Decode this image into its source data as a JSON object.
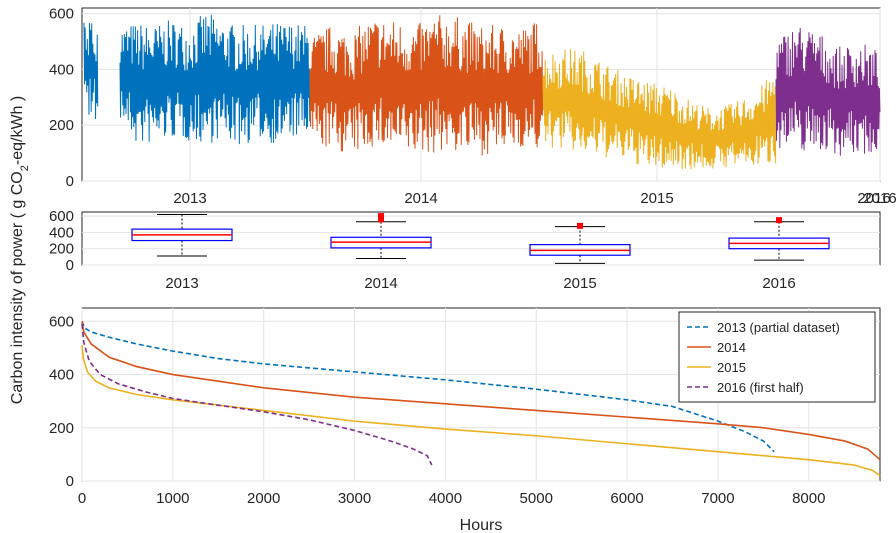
{
  "chart_data": [
    {
      "type": "line",
      "description_role": "hourly time series",
      "ylim": [
        0,
        620
      ],
      "yticks": [
        0,
        200,
        400,
        600
      ],
      "x_tick_labels": [
        "2013",
        "2014",
        "2015",
        "2016"
      ],
      "x_tick_labels_extra": [
        "2016"
      ],
      "colors": {
        "2013": "#0072BD",
        "2014": "#D95319",
        "2015": "#EDB120",
        "2016": "#7E2F8E"
      },
      "series": [
        {
          "name": "2013",
          "level_envelope": {
            "low": [
              220,
              120,
              130,
              150,
              140,
              130,
              150,
              120,
              150,
              130,
              150,
              150
            ],
            "high": [
              560,
              570,
              560,
              580,
              560,
              610,
              570,
              560,
              560,
              570,
              570,
              560
            ]
          }
        },
        {
          "name": "2014",
          "level_envelope": {
            "low": [
              130,
              110,
              90,
              120,
              100,
              90,
              100,
              100,
              90,
              100,
              120,
              100
            ],
            "high": [
              520,
              560,
              540,
              590,
              580,
              560,
              600,
              590,
              560,
              560,
              550,
              590
            ]
          }
        },
        {
          "name": "2015",
          "level_envelope": {
            "low": [
              120,
              110,
              90,
              80,
              70,
              40,
              40,
              40,
              40,
              50,
              50,
              60
            ],
            "high": [
              460,
              480,
              470,
              420,
              380,
              360,
              340,
              290,
              260,
              280,
              320,
              400
            ]
          }
        },
        {
          "name": "2016",
          "level_envelope": {
            "low": [
              120,
              100,
              110,
              90,
              90,
              100
            ],
            "high": [
              510,
              570,
              540,
              480,
              500,
              470
            ]
          }
        }
      ]
    },
    {
      "type": "box",
      "ylim": [
        0,
        650
      ],
      "yticks": [
        0,
        200,
        400,
        600
      ],
      "categories": [
        "2013",
        "2014",
        "2015",
        "2016"
      ],
      "boxes": [
        {
          "category": "2013",
          "whisker_low": 110,
          "q1": 300,
          "median": 370,
          "q3": 440,
          "whisker_high": 620,
          "outliers": []
        },
        {
          "category": "2014",
          "whisker_low": 80,
          "q1": 210,
          "median": 280,
          "q3": 340,
          "whisker_high": 530,
          "outliers": [
            560,
            570,
            580,
            590,
            600
          ]
        },
        {
          "category": "2015",
          "whisker_low": 20,
          "q1": 120,
          "median": 180,
          "q3": 250,
          "whisker_high": 470,
          "outliers": [
            480
          ]
        },
        {
          "category": "2016",
          "whisker_low": 60,
          "q1": 200,
          "median": 265,
          "q3": 330,
          "whisker_high": 530,
          "outliers": [
            550
          ]
        }
      ]
    },
    {
      "type": "line",
      "description_role": "duration curves",
      "xlabel": "Hours",
      "ylabel": "Carbon intensity of power ( g CO₂-eq/kWh )",
      "ylabel_parts": {
        "before": "Carbon intensity of power ( g CO",
        "sub": "2",
        "after": "-eq/kWh )"
      },
      "xlim": [
        0,
        8784
      ],
      "ylim": [
        0,
        650
      ],
      "xticks": [
        0,
        1000,
        2000,
        3000,
        4000,
        5000,
        6000,
        7000,
        8000
      ],
      "yticks": [
        0,
        200,
        400,
        600
      ],
      "grid": true,
      "legend_position": "top-right",
      "series": [
        {
          "name": "2013 (partial dataset)",
          "color": "#0072BD",
          "dash": true,
          "x": [
            0,
            30,
            100,
            300,
            600,
            1000,
            1500,
            2000,
            3000,
            4000,
            5000,
            6000,
            6500,
            7000,
            7300,
            7500,
            7620
          ],
          "y": [
            600,
            575,
            560,
            540,
            515,
            488,
            460,
            440,
            410,
            380,
            345,
            305,
            280,
            225,
            185,
            150,
            110
          ]
        },
        {
          "name": "2014",
          "color": "#D95319",
          "dash": false,
          "x": [
            0,
            20,
            100,
            300,
            600,
            1000,
            1500,
            2000,
            3000,
            4000,
            5000,
            6000,
            7000,
            7500,
            8000,
            8400,
            8650,
            8784
          ],
          "y": [
            600,
            560,
            515,
            465,
            430,
            400,
            375,
            350,
            315,
            290,
            265,
            240,
            215,
            200,
            175,
            150,
            120,
            80
          ]
        },
        {
          "name": "2015",
          "color": "#EDB120",
          "dash": false,
          "x": [
            0,
            15,
            60,
            150,
            300,
            600,
            1000,
            1500,
            2000,
            3000,
            4000,
            5000,
            6000,
            7000,
            8000,
            8500,
            8700,
            8784
          ],
          "y": [
            510,
            460,
            410,
            375,
            350,
            325,
            305,
            285,
            265,
            225,
            195,
            170,
            140,
            110,
            80,
            60,
            40,
            20
          ]
        },
        {
          "name": "2016 (first half)",
          "color": "#7E2F8E",
          "dash": true,
          "x": [
            0,
            20,
            80,
            200,
            400,
            700,
            1000,
            1500,
            2000,
            2500,
            3000,
            3400,
            3650,
            3800,
            3850
          ],
          "y": [
            590,
            520,
            450,
            400,
            365,
            335,
            310,
            285,
            260,
            230,
            190,
            150,
            120,
            95,
            60
          ]
        }
      ]
    }
  ]
}
